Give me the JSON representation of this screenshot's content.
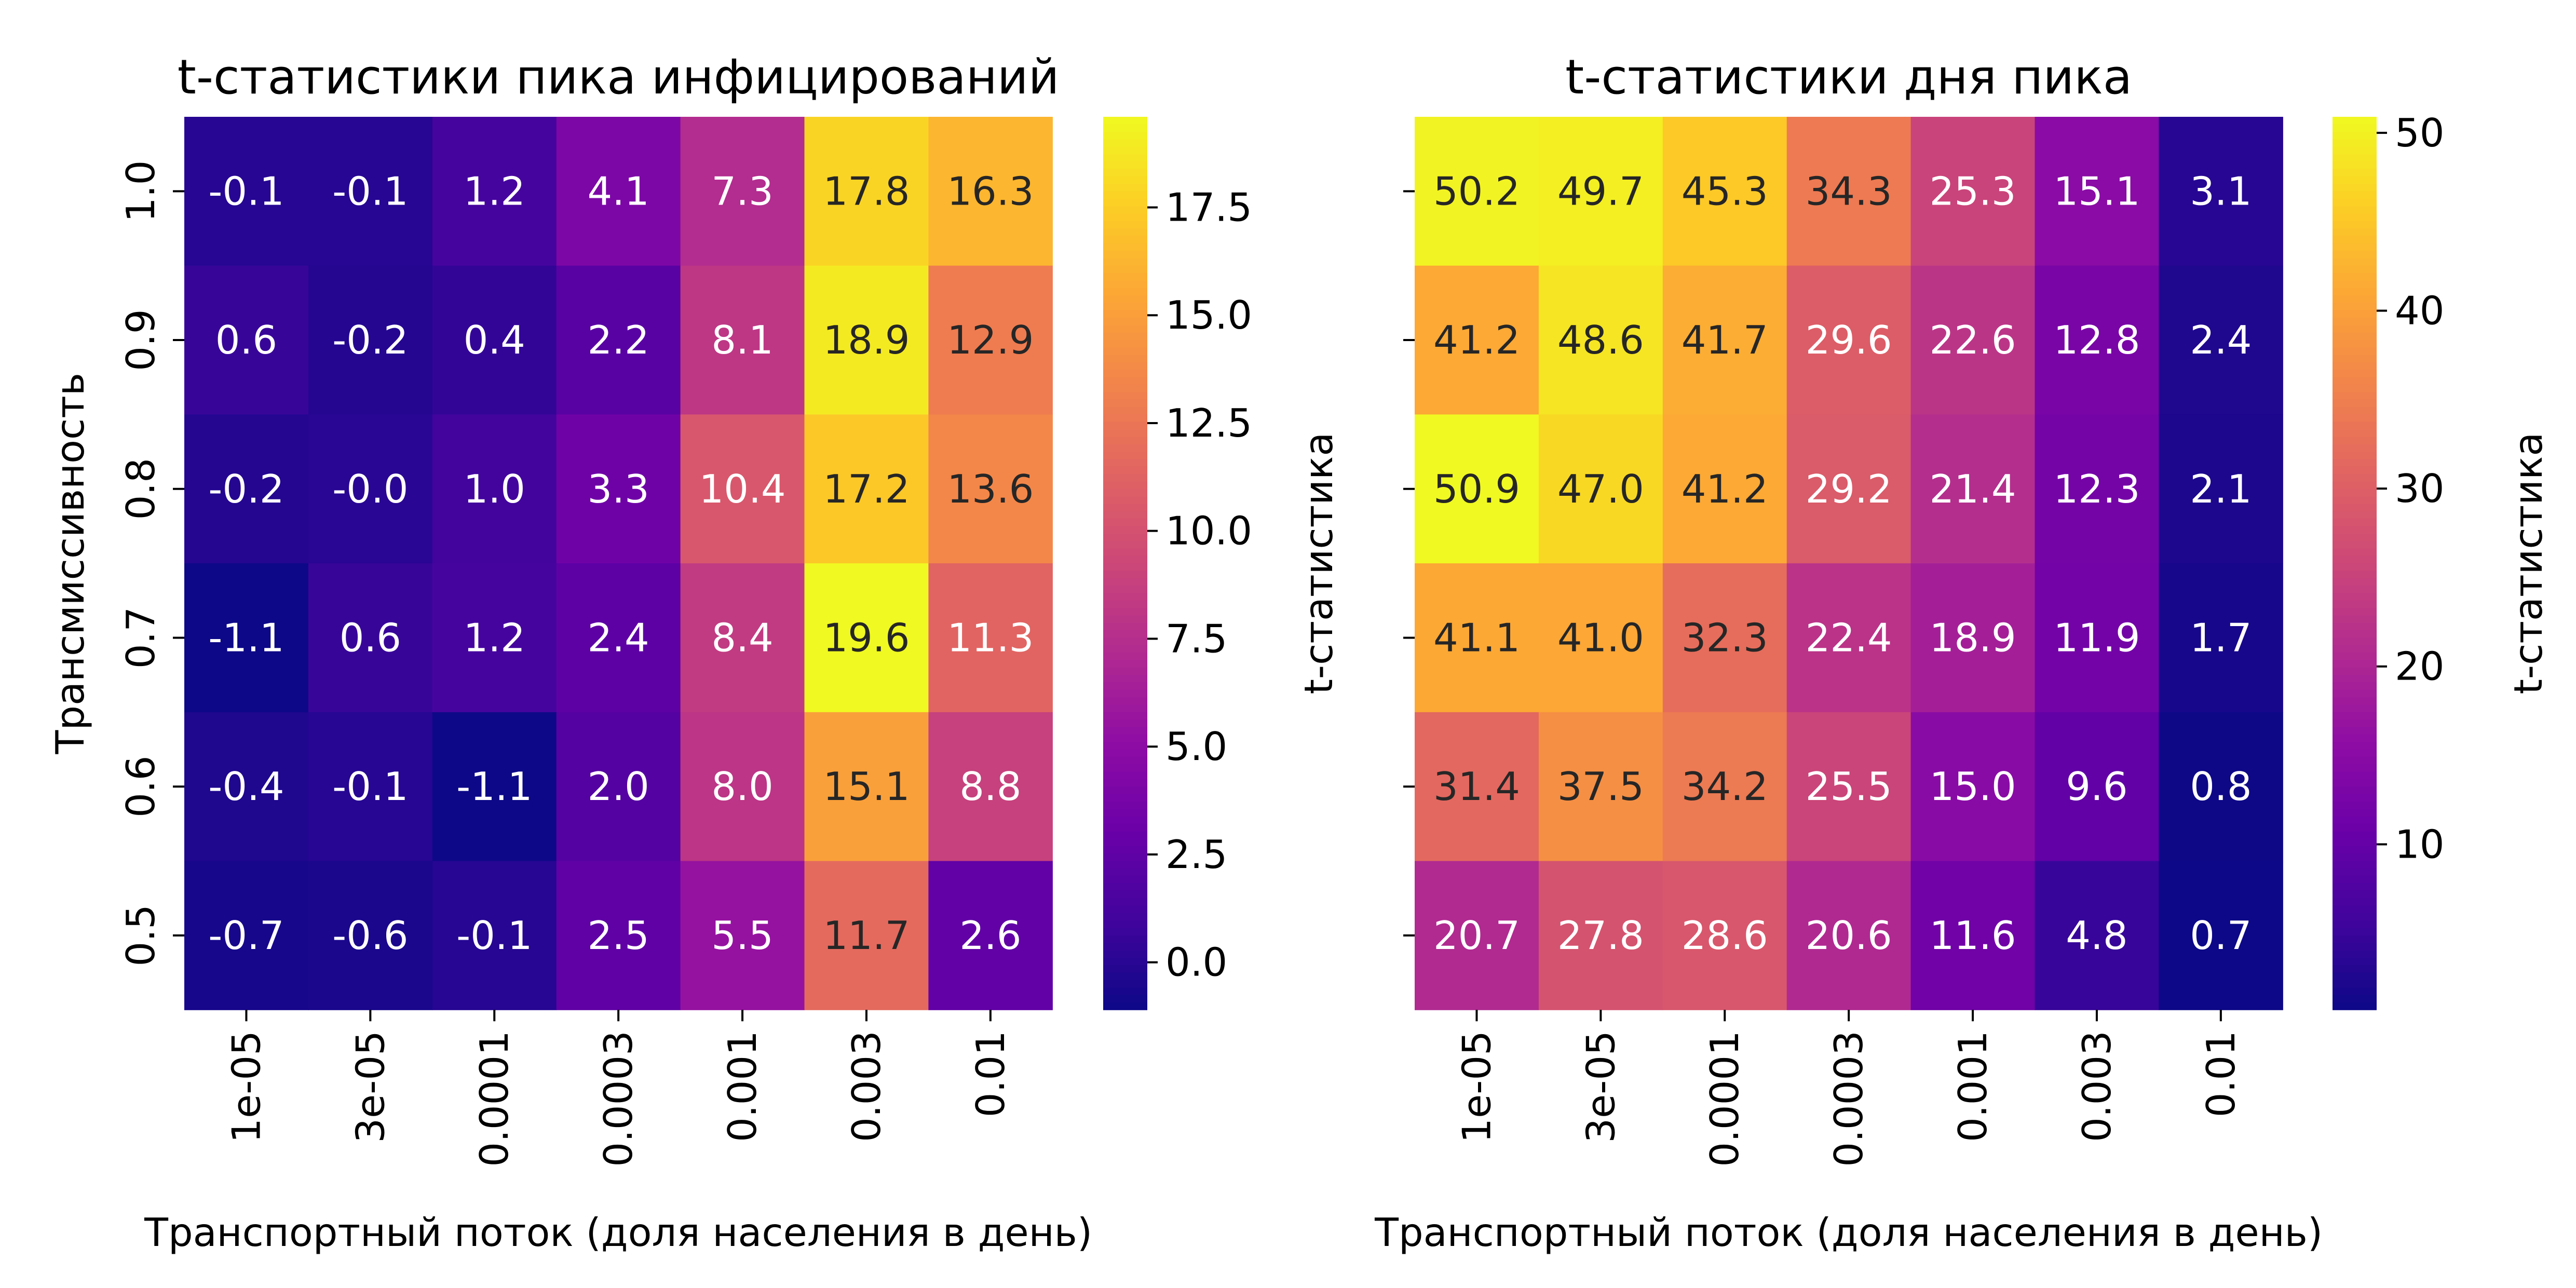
{
  "chart_data": [
    {
      "type": "heatmap",
      "title": "t-статистики пика инфицирований",
      "xlabel": "Транспортный поток (доля населения в день)",
      "ylabel": "Трансмиссивность",
      "x_categories": [
        "1e-05",
        "3e-05",
        "0.0001",
        "0.0003",
        "0.001",
        "0.003",
        "0.01"
      ],
      "y_categories": [
        "1.0",
        "0.9",
        "0.8",
        "0.7",
        "0.6",
        "0.5"
      ],
      "values": [
        [
          -0.1,
          -0.1,
          1.2,
          4.1,
          7.3,
          17.8,
          16.3
        ],
        [
          0.6,
          -0.2,
          0.4,
          2.2,
          8.1,
          18.9,
          12.9
        ],
        [
          -0.2,
          -0.0,
          1.0,
          3.3,
          10.4,
          17.2,
          13.6
        ],
        [
          -1.1,
          0.6,
          1.2,
          2.4,
          8.4,
          19.6,
          11.3
        ],
        [
          -0.4,
          -0.1,
          -1.1,
          2.0,
          8.0,
          15.1,
          8.8
        ],
        [
          -0.7,
          -0.6,
          -0.1,
          2.5,
          5.5,
          11.7,
          2.6
        ]
      ],
      "value_labels": [
        [
          "-0.1",
          "-0.1",
          "1.2",
          "4.1",
          "7.3",
          "17.8",
          "16.3"
        ],
        [
          "0.6",
          "-0.2",
          "0.4",
          "2.2",
          "8.1",
          "18.9",
          "12.9"
        ],
        [
          "-0.2",
          "-0.0",
          "1.0",
          "3.3",
          "10.4",
          "17.2",
          "13.6"
        ],
        [
          "-1.1",
          "0.6",
          "1.2",
          "2.4",
          "8.4",
          "19.6",
          "11.3"
        ],
        [
          "-0.4",
          "-0.1",
          "-1.1",
          "2.0",
          "8.0",
          "15.1",
          "8.8"
        ],
        [
          "-0.7",
          "-0.6",
          "-0.1",
          "2.5",
          "5.5",
          "11.7",
          "2.6"
        ]
      ],
      "colorbar": {
        "label": "t-статистика",
        "range": [
          -1.1,
          19.6
        ],
        "ticks": [
          0.0,
          2.5,
          5.0,
          7.5,
          10.0,
          12.5,
          15.0,
          17.5
        ],
        "tick_labels": [
          "0.0",
          "2.5",
          "5.0",
          "7.5",
          "10.0",
          "12.5",
          "15.0",
          "17.5"
        ]
      },
      "colormap": "plasma"
    },
    {
      "type": "heatmap",
      "title": "t-статистики дня пика",
      "xlabel": "Транспортный поток (доля населения в день)",
      "ylabel": "",
      "x_categories": [
        "1e-05",
        "3e-05",
        "0.0001",
        "0.0003",
        "0.001",
        "0.003",
        "0.01"
      ],
      "y_categories": [
        "1.0",
        "0.9",
        "0.8",
        "0.7",
        "0.6",
        "0.5"
      ],
      "values": [
        [
          50.2,
          49.7,
          45.3,
          34.3,
          25.3,
          15.1,
          3.1
        ],
        [
          41.2,
          48.6,
          41.7,
          29.6,
          22.6,
          12.8,
          2.4
        ],
        [
          50.9,
          47.0,
          41.2,
          29.2,
          21.4,
          12.3,
          2.1
        ],
        [
          41.1,
          41.0,
          32.3,
          22.4,
          18.9,
          11.9,
          1.7
        ],
        [
          31.4,
          37.5,
          34.2,
          25.5,
          15.0,
          9.6,
          0.8
        ],
        [
          20.7,
          27.8,
          28.6,
          20.6,
          11.6,
          4.8,
          0.7
        ]
      ],
      "value_labels": [
        [
          "50.2",
          "49.7",
          "45.3",
          "34.3",
          "25.3",
          "15.1",
          "3.1"
        ],
        [
          "41.2",
          "48.6",
          "41.7",
          "29.6",
          "22.6",
          "12.8",
          "2.4"
        ],
        [
          "50.9",
          "47.0",
          "41.2",
          "29.2",
          "21.4",
          "12.3",
          "2.1"
        ],
        [
          "41.1",
          "41.0",
          "32.3",
          "22.4",
          "18.9",
          "11.9",
          "1.7"
        ],
        [
          "31.4",
          "37.5",
          "34.2",
          "25.5",
          "15.0",
          "9.6",
          "0.8"
        ],
        [
          "20.7",
          "27.8",
          "28.6",
          "20.6",
          "11.6",
          "4.8",
          "0.7"
        ]
      ],
      "colorbar": {
        "label": "t-статистика",
        "range": [
          0.7,
          50.9
        ],
        "ticks": [
          10,
          20,
          30,
          40,
          50
        ],
        "tick_labels": [
          "10",
          "20",
          "30",
          "40",
          "50"
        ]
      },
      "colormap": "plasma"
    }
  ]
}
